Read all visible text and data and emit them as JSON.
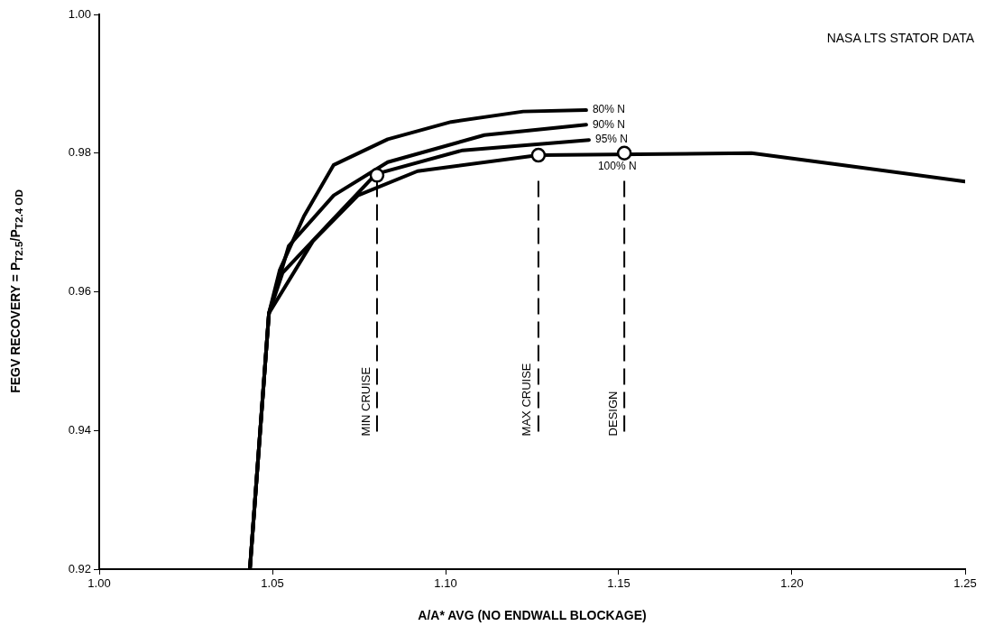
{
  "chart_data": {
    "type": "line",
    "xlabel": "A/A* AVG (NO ENDWALL BLOCKAGE)",
    "ylabel": "FEGV RECOVERY = P$_{T2.5}$/P$_{T2.4 OD}$",
    "xlim": [
      1.0,
      1.25
    ],
    "xticks": [
      {
        "value": 1.0,
        "label": "1.00"
      },
      {
        "value": 1.05,
        "label": "1.05"
      },
      {
        "value": 1.1,
        "label": "1.10"
      },
      {
        "value": 1.15,
        "label": "1.15"
      },
      {
        "value": 1.2,
        "label": "1.20"
      },
      {
        "value": 1.25,
        "label": "1.25"
      }
    ],
    "ylim": [
      0.92,
      1.0
    ],
    "yticks": [
      {
        "value": 0.92,
        "label": "0.92"
      },
      {
        "value": 0.94,
        "label": "0.94"
      },
      {
        "value": 0.96,
        "label": "0.96"
      },
      {
        "value": 0.98,
        "label": "0.98"
      },
      {
        "value": 1.0,
        "label": "1.00"
      }
    ],
    "grid": false,
    "legend": false,
    "marker": "none",
    "line_style": "solid",
    "series": [
      {
        "name": "80% N",
        "color": "#000000",
        "x": [
          1.0435,
          1.049,
          1.0521,
          1.0591,
          1.0677,
          1.0833,
          1.1016,
          1.1224,
          1.1406
        ],
        "values": [
          0.92,
          0.9569,
          0.9631,
          0.9709,
          0.9783,
          0.982,
          0.9845,
          0.986,
          0.9862
        ]
      },
      {
        "name": "90% N",
        "color": "#000000",
        "x": [
          1.0435,
          1.049,
          1.0547,
          1.0677,
          1.0833,
          1.1112,
          1.1406
        ],
        "values": [
          0.92,
          0.9569,
          0.9666,
          0.9739,
          0.9787,
          0.9826,
          0.9841
        ]
      },
      {
        "name": "95% N",
        "color": "#000000",
        "x": [
          1.0435,
          1.049,
          1.0529,
          1.0659,
          1.0799,
          1.1049,
          1.1414
        ],
        "values": [
          0.92,
          0.9569,
          0.9627,
          0.9696,
          0.977,
          0.9804,
          0.9819
        ]
      },
      {
        "name": "100% N",
        "color": "#000000",
        "x": [
          1.0435,
          1.049,
          1.0617,
          1.0747,
          1.0919,
          1.1268,
          1.1883,
          1.214,
          1.25
        ],
        "values": [
          0.92,
          0.9569,
          0.9673,
          0.9739,
          0.9774,
          0.9797,
          0.98,
          0.9783,
          0.9759
        ]
      },
      {
        "type": "scatter",
        "color": "#000000",
        "marker": "circle",
        "x": [
          1.0802,
          1.1268,
          1.1516
        ],
        "values": [
          0.9768,
          0.9797,
          0.98
        ]
      }
    ],
    "ref_lines": [
      {
        "axis": "x",
        "value": 1.0802,
        "label": "MIN CRUISE",
        "line_style": "dashed"
      },
      {
        "axis": "x",
        "value": 1.1268,
        "label": "MAX CRUISE",
        "line_style": "dashed"
      },
      {
        "axis": "x",
        "value": 1.1516,
        "label": "DESIGN",
        "line_style": "dashed"
      }
    ],
    "annotations": [
      "NASA LTS STATOR DATA"
    ]
  }
}
